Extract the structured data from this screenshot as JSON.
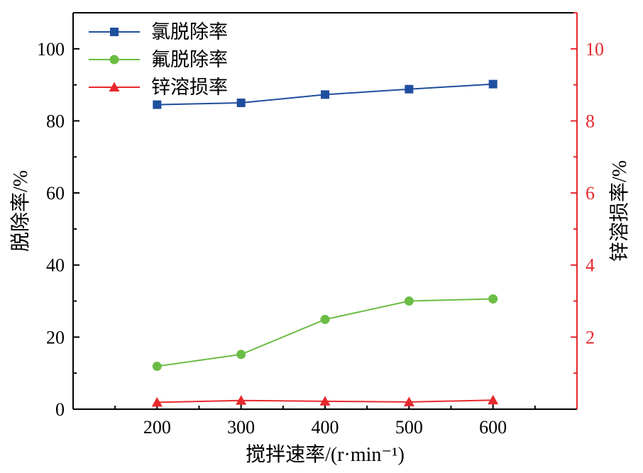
{
  "chart_data": {
    "type": "line",
    "title": "",
    "x": [
      200,
      300,
      400,
      500,
      600
    ],
    "xlabel": "搅拌速率/(r·min⁻¹)",
    "ylabel_left": "脱除率/%",
    "ylabel_right": "锌溶损率/%",
    "xlim": [
      100,
      700
    ],
    "ylim_left": [
      0,
      110
    ],
    "ylim_right": [
      0,
      11
    ],
    "xticks": [
      "200",
      "300",
      "400",
      "500",
      "600"
    ],
    "yticks_left": [
      "0",
      "20",
      "40",
      "60",
      "80",
      "100"
    ],
    "yticks_right": [
      "2",
      "4",
      "6",
      "8",
      "10"
    ],
    "grid": false,
    "legend_position": "top-left",
    "series": [
      {
        "name": "氯脱除率",
        "axis": "left",
        "marker": "square",
        "color": "#1f4e9e",
        "values": [
          84.5,
          85.0,
          87.3,
          88.8,
          90.2
        ]
      },
      {
        "name": "氟脱除率",
        "axis": "left",
        "marker": "circle",
        "color": "#6bbd45",
        "values": [
          11.9,
          15.2,
          24.9,
          30.0,
          30.6
        ]
      },
      {
        "name": "锌溶损率",
        "axis": "right",
        "marker": "triangle",
        "color": "#e8282d",
        "values": [
          0.19,
          0.24,
          0.22,
          0.2,
          0.25
        ]
      }
    ],
    "colors": {
      "axis": "#000000",
      "right_axis": "#e8282d"
    }
  }
}
